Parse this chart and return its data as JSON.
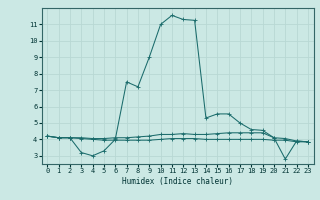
{
  "xlabel": "Humidex (Indice chaleur)",
  "background_color": "#cbe8e4",
  "grid_color": "#b8d8d4",
  "line_color": "#1a6b6b",
  "x_values": [
    0,
    1,
    2,
    3,
    4,
    5,
    6,
    7,
    8,
    9,
    10,
    11,
    12,
    13,
    14,
    15,
    16,
    17,
    18,
    19,
    20,
    21,
    22,
    23
  ],
  "series1": [
    4.2,
    4.1,
    4.1,
    3.2,
    3.0,
    3.3,
    4.0,
    7.5,
    7.2,
    9.0,
    11.0,
    11.55,
    11.3,
    11.25,
    5.3,
    5.55,
    5.55,
    5.0,
    4.6,
    4.55,
    4.1,
    2.8,
    3.9,
    3.85
  ],
  "series2": [
    4.2,
    4.1,
    4.1,
    4.05,
    4.0,
    3.95,
    3.95,
    3.95,
    3.95,
    3.95,
    4.0,
    4.05,
    4.05,
    4.05,
    4.0,
    4.0,
    4.0,
    4.0,
    4.0,
    4.0,
    3.95,
    3.95,
    3.85,
    3.85
  ],
  "series3": [
    4.2,
    4.1,
    4.1,
    4.1,
    4.05,
    4.05,
    4.1,
    4.1,
    4.15,
    4.2,
    4.3,
    4.3,
    4.35,
    4.3,
    4.3,
    4.35,
    4.4,
    4.4,
    4.4,
    4.4,
    4.1,
    4.05,
    3.9,
    3.85
  ],
  "xlim": [
    -0.5,
    23.5
  ],
  "ylim": [
    2.5,
    12.0
  ],
  "yticks": [
    3,
    4,
    5,
    6,
    7,
    8,
    9,
    10,
    11
  ],
  "xticks": [
    0,
    1,
    2,
    3,
    4,
    5,
    6,
    7,
    8,
    9,
    10,
    11,
    12,
    13,
    14,
    15,
    16,
    17,
    18,
    19,
    20,
    21,
    22,
    23
  ]
}
